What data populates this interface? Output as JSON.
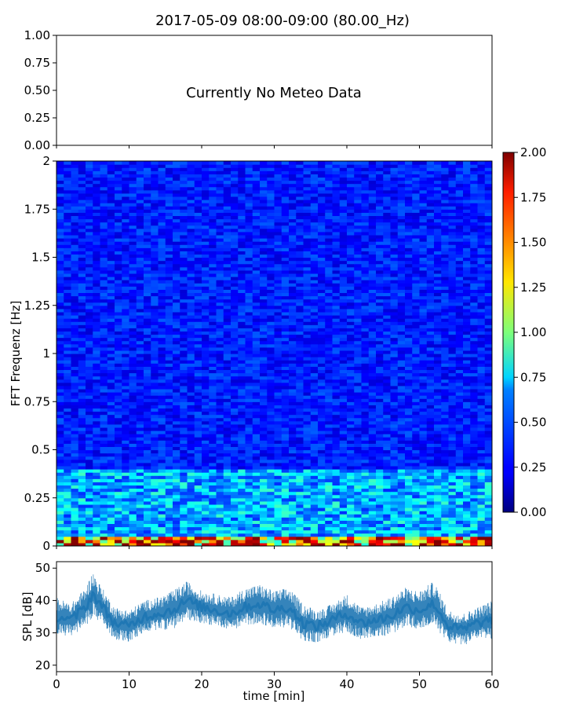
{
  "title": "2017-05-09 08:00-09:00 (80.00_Hz)",
  "meteo_panel": {
    "message": "Currently No Meteo Data",
    "yticks": [
      "0.00",
      "0.25",
      "0.50",
      "0.75",
      "1.00"
    ]
  },
  "colors": {
    "series": "#1f77b4",
    "jet_low": "#00007f",
    "jet_high": "#7f0000"
  },
  "chart_data": [
    {
      "type": "scatter",
      "title": "2017-05-09 08:00-09:00 (80.00_Hz)",
      "xlim": [
        0,
        60
      ],
      "ylim": [
        0,
        1
      ],
      "annotation": "Currently No Meteo Data",
      "yticks": [
        0,
        0.25,
        0.5,
        0.75,
        1.0
      ]
    },
    {
      "type": "heatmap",
      "xlabel": "",
      "ylabel": "FFT Frequenz [Hz]",
      "xlim": [
        0,
        60
      ],
      "ylim": [
        0,
        2
      ],
      "yticks": [
        "0",
        "0.25",
        "0.5",
        "0.75",
        "1",
        "1.25",
        "1.5",
        "1.75",
        "2"
      ],
      "colorbar": {
        "min": 0,
        "max": 2,
        "colormap": "jet",
        "ticks": [
          "0.00",
          "0.25",
          "0.50",
          "0.75",
          "1.00",
          "1.25",
          "1.50",
          "1.75",
          "2.00"
        ]
      },
      "typical_values": [
        {
          "freq_range": [
            0,
            0.05
          ],
          "value": 1.4
        },
        {
          "freq_range": [
            0.05,
            0.4
          ],
          "value": 0.6
        },
        {
          "freq_range": [
            0.4,
            2.0
          ],
          "value": 0.3
        }
      ]
    },
    {
      "type": "area",
      "xlabel": "time [min]",
      "ylabel": "SPL [dB]",
      "xlim": [
        0,
        60
      ],
      "ylim": [
        18,
        52
      ],
      "xticks": [
        "0",
        "10",
        "20",
        "30",
        "40",
        "50",
        "60"
      ],
      "yticks": [
        "20",
        "30",
        "40",
        "50"
      ],
      "series": [
        {
          "x": [
            0,
            2,
            4,
            5,
            6,
            8,
            10,
            12,
            14,
            16,
            18,
            20,
            22,
            24,
            26,
            28,
            30,
            32,
            34,
            36,
            38,
            40,
            42,
            44,
            46,
            48,
            50,
            52,
            54,
            56,
            58,
            60
          ],
          "values": [
            35,
            34,
            38,
            42,
            39,
            33,
            32,
            35,
            36,
            37,
            40,
            38,
            37,
            36,
            38,
            39,
            37,
            38,
            33,
            32,
            34,
            36,
            33,
            34,
            35,
            38,
            37,
            39,
            32,
            31,
            33,
            34
          ],
          "spread": [
            6,
            5,
            6,
            7,
            6,
            5,
            5,
            5,
            5,
            6,
            6,
            5,
            5,
            5,
            6,
            6,
            6,
            6,
            6,
            5,
            5,
            6,
            5,
            5,
            6,
            6,
            6,
            7,
            5,
            5,
            5,
            6
          ]
        }
      ]
    }
  ]
}
